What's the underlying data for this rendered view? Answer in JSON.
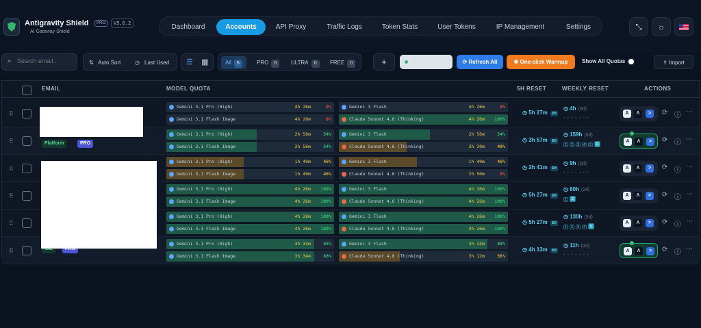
{
  "brand": {
    "name": "Antigravity Shield",
    "pro": "PRO",
    "version": "V5.6.2",
    "subtitle": "AI Gateway Shield"
  },
  "nav": {
    "tabs": [
      "Dashboard",
      "Accounts",
      "API Proxy",
      "Traffic Logs",
      "Token Stats",
      "User Tokens",
      "IP Management",
      "Settings"
    ],
    "active": "Accounts"
  },
  "toolbar": {
    "search_placeholder": "Search email...",
    "auto_sort": "Auto Sort",
    "last_used": "Last Used",
    "filters": [
      {
        "label": "All",
        "count": "6"
      },
      {
        "label": "PRO",
        "count": "6"
      },
      {
        "label": "ULTRA",
        "count": "0"
      },
      {
        "label": "FREE",
        "count": "0"
      }
    ],
    "add": "+",
    "refresh_all": "Refresh All",
    "warmup": "One-click Warmup",
    "show_all": "Show All Quotas",
    "import": "Import"
  },
  "table": {
    "headers": {
      "email": "EMAIL",
      "quota": "MODEL QUOTA",
      "reset5h": "5H RESET",
      "weekly": "WEEKLY RESET",
      "actions": "ACTIONS"
    },
    "rows": [
      {
        "tags": [],
        "quota": [
          {
            "name": "Gemini 3.1 Pro (High)",
            "time": "4h 26m",
            "pct": "0%",
            "fill": 0
          },
          {
            "name": "Gemini 3 Flash",
            "time": "4h 26m",
            "pct": "0%",
            "fill": 0
          },
          {
            "name": "Gemini 3.1 Flash Image",
            "time": "4h 26m",
            "pct": "0%",
            "fill": 0
          },
          {
            "name": "Claude Sonnet 4.6 (Thinking)",
            "time": "4h 26m",
            "pct": "100%",
            "fill": 100
          }
        ],
        "reset5h": "5h 27m",
        "weekly": "4h",
        "weekly_sub": "(0d)",
        "active": false
      },
      {
        "tags": [
          "Platform",
          "PRO"
        ],
        "quota": [
          {
            "name": "Gemini 3.1 Pro (High)",
            "time": "2h 56m",
            "pct": "54%",
            "fill": 54
          },
          {
            "name": "Gemini 3 Flash",
            "time": "2h 56m",
            "pct": "54%",
            "fill": 54
          },
          {
            "name": "Gemini 3.1 Flash Image",
            "time": "2h 56m",
            "pct": "54%",
            "fill": 54
          },
          {
            "name": "Claude Sonnet 4.6 (Thinking)",
            "time": "3h 20m",
            "pct": "40%",
            "fill": 40
          }
        ],
        "reset5h": "3h 57m",
        "weekly": "159h",
        "weekly_sub": "(6d)",
        "weekly_days": [
          "1",
          "2",
          "3",
          "4",
          "5",
          "6"
        ],
        "active": true
      },
      {
        "tags": [],
        "quota": [
          {
            "name": "Gemini 3.1 Pro (High)",
            "time": "1h 40m",
            "pct": "46%",
            "fill": 46
          },
          {
            "name": "Gemini 3 Flash",
            "time": "1h 40m",
            "pct": "46%",
            "fill": 46
          },
          {
            "name": "Gemini 3.1 Flash Image",
            "time": "1h 40m",
            "pct": "46%",
            "fill": 46
          },
          {
            "name": "Claude Sonnet 4.6 (Thinking)",
            "time": "2h 50m",
            "pct": "0%",
            "fill": 0
          }
        ],
        "reset5h": "2h 41m",
        "weekly": "9h",
        "weekly_sub": "(0d)",
        "active": false
      },
      {
        "tags": [],
        "quota": [
          {
            "name": "Gemini 3.1 Pro (High)",
            "time": "4h 26m",
            "pct": "100%",
            "fill": 100
          },
          {
            "name": "Gemini 3 Flash",
            "time": "4h 26m",
            "pct": "100%",
            "fill": 100
          },
          {
            "name": "Gemini 3.1 Flash Image",
            "time": "4h 26m",
            "pct": "100%",
            "fill": 100
          },
          {
            "name": "Claude Sonnet 4.6 (Thinking)",
            "time": "4h 26m",
            "pct": "100%",
            "fill": 100
          }
        ],
        "reset5h": "5h 27m",
        "weekly": "60h",
        "weekly_sub": "(2d)",
        "weekly_days": [
          "1",
          "2"
        ],
        "active": false
      },
      {
        "tags": [],
        "quota": [
          {
            "name": "Gemini 3.1 Pro (High)",
            "time": "4h 26m",
            "pct": "100%",
            "fill": 100
          },
          {
            "name": "Gemini 3 Flash",
            "time": "4h 26m",
            "pct": "100%",
            "fill": 100
          },
          {
            "name": "Gemini 3.1 Flash Image",
            "time": "4h 26m",
            "pct": "100%",
            "fill": 100
          },
          {
            "name": "Claude Sonnet 4.6 (Thinking)",
            "time": "4h 26m",
            "pct": "100%",
            "fill": 100
          }
        ],
        "reset5h": "5h 27m",
        "weekly": "130h",
        "weekly_sub": "(5d)",
        "weekly_days": [
          "1",
          "2",
          "3",
          "4",
          "5"
        ],
        "active": false
      },
      {
        "tags": [
          "IDE",
          "PRO"
        ],
        "quota": [
          {
            "name": "Gemini 3.1 Pro (High)",
            "time": "3h 34m",
            "pct": "88%",
            "fill": 88
          },
          {
            "name": "Gemini 3 Flash",
            "time": "3h 34m",
            "pct": "88%",
            "fill": 88
          },
          {
            "name": "Gemini 3.1 Flash Image",
            "time": "3h 34m",
            "pct": "88%",
            "fill": 88
          },
          {
            "name": "Claude Sonnet 4.6 (Thinking)",
            "time": "3h 12m",
            "pct": "36%",
            "fill": 36
          }
        ],
        "reset5h": "4h 13m",
        "weekly": "11h",
        "weekly_sub": "(0d)",
        "active": true
      }
    ]
  },
  "sh_badge": "SH",
  "colors": {
    "accent": "#179be5",
    "warmup": "#f07b1e",
    "green": "#35c07a",
    "amber": "#e0a93a",
    "red": "#e5484d"
  }
}
